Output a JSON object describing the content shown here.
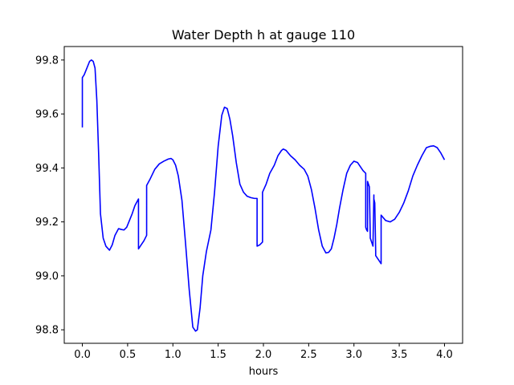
{
  "chart_data": {
    "type": "line",
    "title": "Water Depth h at gauge 110",
    "xlabel": "hours",
    "ylabel": "",
    "xlim": [
      -0.2,
      4.2
    ],
    "ylim": [
      98.75,
      99.85
    ],
    "xticks": [
      0.0,
      0.5,
      1.0,
      1.5,
      2.0,
      2.5,
      3.0,
      3.5,
      4.0
    ],
    "xtick_labels": [
      "0.0",
      "0.5",
      "1.0",
      "1.5",
      "2.0",
      "2.5",
      "3.0",
      "3.5",
      "4.0"
    ],
    "yticks": [
      98.8,
      99.0,
      99.2,
      99.4,
      99.6,
      99.8
    ],
    "ytick_labels": [
      "98.8",
      "99.0",
      "99.2",
      "99.4",
      "99.6",
      "99.8"
    ],
    "grid": false,
    "legend": "none",
    "line_color": "#0000ff",
    "series": [
      {
        "x": [
          0.0,
          0.0,
          0.02,
          0.05,
          0.08,
          0.1,
          0.12,
          0.14,
          0.16,
          0.18,
          0.2,
          0.23,
          0.26,
          0.3,
          0.33,
          0.36,
          0.4,
          0.43,
          0.46,
          0.49,
          0.52,
          0.55,
          0.58,
          0.62,
          0.62,
          0.65,
          0.68,
          0.71,
          0.71,
          0.75,
          0.8,
          0.85,
          0.9,
          0.95,
          0.98,
          1.0,
          1.03,
          1.06,
          1.1,
          1.14,
          1.18,
          1.22,
          1.25,
          1.27,
          1.3,
          1.33,
          1.37,
          1.42,
          1.46,
          1.5,
          1.54,
          1.57,
          1.6,
          1.63,
          1.66,
          1.7,
          1.74,
          1.78,
          1.82,
          1.86,
          1.9,
          1.93,
          1.93,
          1.96,
          1.99,
          1.99,
          2.03,
          2.07,
          2.12,
          2.16,
          2.2,
          2.22,
          2.25,
          2.3,
          2.35,
          2.4,
          2.45,
          2.49,
          2.53,
          2.57,
          2.61,
          2.65,
          2.69,
          2.72,
          2.75,
          2.78,
          2.81,
          2.84,
          2.88,
          2.92,
          2.96,
          3.0,
          3.04,
          3.07,
          3.1,
          3.13,
          3.13,
          3.14,
          3.15,
          3.15,
          3.16,
          3.17,
          3.18,
          3.18,
          3.2,
          3.21,
          3.22,
          3.22,
          3.23,
          3.24,
          3.24,
          3.27,
          3.3,
          3.3,
          3.35,
          3.4,
          3.45,
          3.5,
          3.55,
          3.6,
          3.65,
          3.7,
          3.75,
          3.8,
          3.84,
          3.88,
          3.92,
          3.96,
          4.0
        ],
        "y": [
          99.55,
          99.735,
          99.745,
          99.77,
          99.795,
          99.8,
          99.795,
          99.77,
          99.65,
          99.45,
          99.23,
          99.14,
          99.11,
          99.095,
          99.115,
          99.15,
          99.175,
          99.172,
          99.17,
          99.18,
          99.205,
          99.23,
          99.26,
          99.285,
          99.1,
          99.115,
          99.13,
          99.15,
          99.335,
          99.36,
          99.395,
          99.415,
          99.425,
          99.433,
          99.435,
          99.43,
          99.41,
          99.37,
          99.28,
          99.12,
          98.95,
          98.81,
          98.795,
          98.8,
          98.88,
          99.0,
          99.09,
          99.17,
          99.31,
          99.48,
          99.595,
          99.625,
          99.62,
          99.58,
          99.52,
          99.42,
          99.34,
          99.31,
          99.295,
          99.29,
          99.287,
          99.287,
          99.11,
          99.115,
          99.125,
          99.31,
          99.34,
          99.38,
          99.41,
          99.445,
          99.465,
          99.47,
          99.465,
          99.445,
          99.43,
          99.41,
          99.395,
          99.37,
          99.32,
          99.25,
          99.17,
          99.11,
          99.085,
          99.087,
          99.1,
          99.14,
          99.19,
          99.25,
          99.32,
          99.38,
          99.41,
          99.425,
          99.42,
          99.405,
          99.39,
          99.38,
          99.18,
          99.17,
          99.165,
          99.35,
          99.34,
          99.33,
          99.15,
          99.14,
          99.12,
          99.11,
          99.3,
          99.285,
          99.27,
          99.09,
          99.075,
          99.06,
          99.045,
          99.225,
          99.205,
          99.2,
          99.21,
          99.235,
          99.27,
          99.315,
          99.37,
          99.41,
          99.445,
          99.475,
          99.48,
          99.482,
          99.475,
          99.455,
          99.43
        ]
      }
    ]
  }
}
